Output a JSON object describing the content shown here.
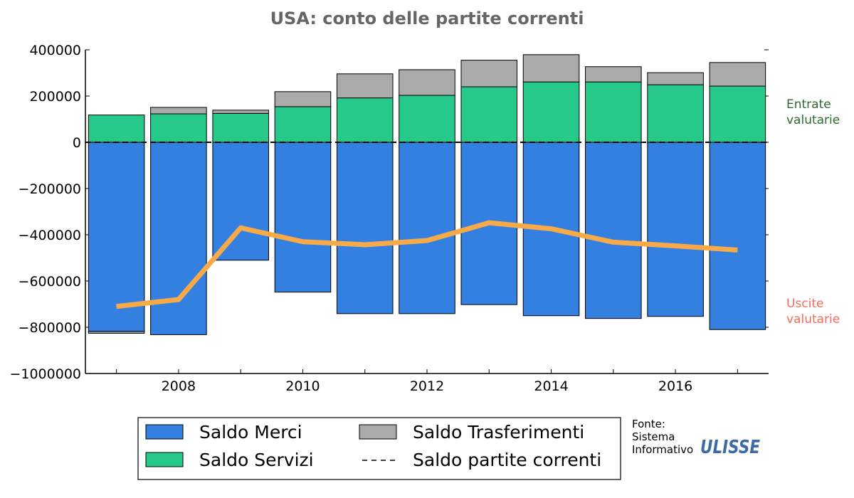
{
  "chart_data": {
    "type": "bar",
    "stacked": true,
    "title": "USA: conto delle partite correnti",
    "x": [
      2007,
      2008,
      2009,
      2010,
      2011,
      2012,
      2013,
      2014,
      2015,
      2016,
      2017
    ],
    "x_ticks": [
      "2008",
      "2010",
      "2012",
      "2014",
      "2016"
    ],
    "ylim": [
      -1000000,
      400000
    ],
    "y_ticks": [
      "400000",
      "200000",
      "0",
      "−200000",
      "−400000",
      "−600000",
      "−800000",
      "−1000000"
    ],
    "series": [
      {
        "name": "Saldo Merci",
        "type": "bar",
        "color": "#3380e0",
        "values": [
          -818000,
          -832000,
          -510000,
          -648000,
          -741000,
          -741000,
          -702000,
          -750000,
          -762000,
          -753000,
          -810000
        ]
      },
      {
        "name": "Saldo Servizi",
        "type": "bar",
        "color": "#27c98a",
        "values": [
          118000,
          123000,
          125000,
          154000,
          192000,
          203000,
          240000,
          261000,
          261000,
          249000,
          243000
        ]
      },
      {
        "name": "Saldo Trasferimenti",
        "type": "bar",
        "color": "#aaaaaa",
        "values": [
          -8000,
          28000,
          14000,
          65000,
          104000,
          111000,
          115000,
          118000,
          66000,
          52000,
          102000
        ]
      },
      {
        "name": "Saldo partite correnti",
        "type": "line",
        "color": "#f8aa48",
        "values": [
          -710000,
          -680000,
          -370000,
          -430000,
          -443000,
          -425000,
          -348000,
          -374000,
          -432000,
          -448000,
          -466000
        ]
      }
    ],
    "zero_line_style": "dashed",
    "side_labels": {
      "top": "Entrate\nvalutarie",
      "bottom": "Uscite\nvalutarie"
    },
    "legend": {
      "position": "bottom",
      "columns": 2,
      "order": [
        "Saldo Merci",
        "Saldo Trasferimenti",
        "Saldo Servizi",
        "Saldo partite correnti"
      ]
    },
    "grid": false
  },
  "colors": {
    "positive_label": "#2e6b2e",
    "negative_label": "#f56c5a",
    "title": "#666666",
    "logo": "#3c6aa6"
  },
  "source": {
    "line1": "Fonte:",
    "line2": "Sistema",
    "line3": "Informativo",
    "logo": "ULISSE"
  }
}
